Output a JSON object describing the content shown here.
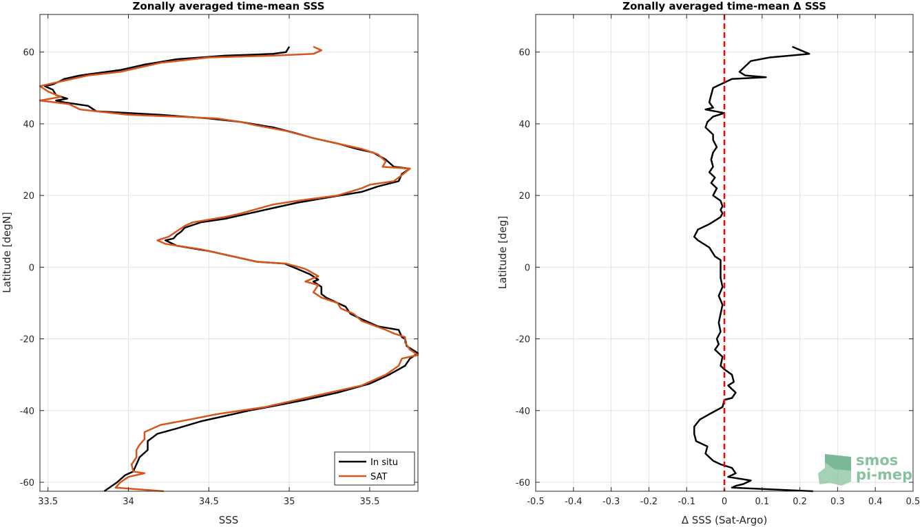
{
  "chart_data": [
    {
      "type": "line",
      "title": "Zonally averaged time-mean SSS",
      "xlabel": "SSS",
      "ylabel": "Latitude [degN]",
      "xlim": [
        33.45,
        35.8
      ],
      "ylim": [
        -62.5,
        70.5
      ],
      "xticks": [
        33.5,
        34,
        34.5,
        35,
        35.5
      ],
      "xtick_labels": [
        "33.5",
        "34",
        "34.5",
        "35",
        "35.5"
      ],
      "yticks": [
        -60,
        -40,
        -20,
        0,
        20,
        40,
        60
      ],
      "ytick_labels": [
        "-60",
        "-40",
        "-20",
        "0",
        "20",
        "40",
        "60"
      ],
      "grid": true,
      "legend": "bottom-right",
      "series": [
        {
          "name": "In situ",
          "color": "#000000",
          "points": [
            [
              35.0,
              61.5
            ],
            [
              34.98,
              60
            ],
            [
              34.9,
              59.5
            ],
            [
              34.6,
              59
            ],
            [
              34.3,
              58
            ],
            [
              34.1,
              56.5
            ],
            [
              33.95,
              55
            ],
            [
              33.7,
              53.5
            ],
            [
              33.6,
              52.5
            ],
            [
              33.58,
              52
            ],
            [
              33.53,
              51
            ],
            [
              33.48,
              50.5
            ],
            [
              33.53,
              49.5
            ],
            [
              33.55,
              48
            ],
            [
              33.62,
              47
            ],
            [
              33.55,
              46.5
            ],
            [
              33.6,
              46
            ],
            [
              33.75,
              45
            ],
            [
              33.8,
              43.5
            ],
            [
              34.0,
              43
            ],
            [
              34.2,
              42.5
            ],
            [
              34.5,
              41.5
            ],
            [
              34.7,
              40.5
            ],
            [
              34.83,
              39.5
            ],
            [
              34.9,
              39
            ],
            [
              35.03,
              37.5
            ],
            [
              35.15,
              36
            ],
            [
              35.3,
              34.5
            ],
            [
              35.42,
              33
            ],
            [
              35.52,
              32
            ],
            [
              35.6,
              30
            ],
            [
              35.65,
              28
            ],
            [
              35.75,
              27.5
            ],
            [
              35.7,
              26
            ],
            [
              35.68,
              24
            ],
            [
              35.55,
              22.5
            ],
            [
              35.45,
              21
            ],
            [
              35.25,
              19.5
            ],
            [
              35.05,
              18
            ],
            [
              34.9,
              16.5
            ],
            [
              34.75,
              15
            ],
            [
              34.6,
              13.5
            ],
            [
              34.45,
              12.5
            ],
            [
              34.35,
              11
            ],
            [
              34.33,
              10
            ],
            [
              34.3,
              9
            ],
            [
              34.28,
              8
            ],
            [
              34.23,
              7.5
            ],
            [
              34.3,
              6
            ],
            [
              34.5,
              4.5
            ],
            [
              34.6,
              3.5
            ],
            [
              34.8,
              1.5
            ],
            [
              34.97,
              1
            ],
            [
              35.05,
              -0.5
            ],
            [
              35.13,
              -2
            ],
            [
              35.18,
              -3.5
            ],
            [
              35.15,
              -4
            ],
            [
              35.2,
              -5.5
            ],
            [
              35.2,
              -7.5
            ],
            [
              35.23,
              -8.5
            ],
            [
              35.3,
              -10
            ],
            [
              35.35,
              -11
            ],
            [
              35.38,
              -13
            ],
            [
              35.45,
              -14.5
            ],
            [
              35.55,
              -16.5
            ],
            [
              35.68,
              -17.5
            ],
            [
              35.7,
              -19.5
            ],
            [
              35.72,
              -20
            ],
            [
              35.73,
              -22
            ],
            [
              35.8,
              -24
            ],
            [
              35.75,
              -25.5
            ],
            [
              35.72,
              -27.5
            ],
            [
              35.62,
              -30
            ],
            [
              35.5,
              -32.5
            ],
            [
              35.3,
              -35
            ],
            [
              35.1,
              -37
            ],
            [
              34.93,
              -38.5
            ],
            [
              34.75,
              -40
            ],
            [
              34.6,
              -41.5
            ],
            [
              34.45,
              -43
            ],
            [
              34.3,
              -45
            ],
            [
              34.18,
              -46.5
            ],
            [
              34.12,
              -48.5
            ],
            [
              34.12,
              -51
            ],
            [
              34.07,
              -53
            ],
            [
              34.05,
              -55
            ],
            [
              34.03,
              -57
            ],
            [
              33.98,
              -58
            ],
            [
              33.93,
              -60
            ],
            [
              33.85,
              -62.5
            ]
          ]
        },
        {
          "name": "SAT",
          "color": "#d9541a",
          "points": [
            [
              35.15,
              61.5
            ],
            [
              35.2,
              60.5
            ],
            [
              35.15,
              59.5
            ],
            [
              34.9,
              59
            ],
            [
              34.5,
              58.5
            ],
            [
              34.2,
              57
            ],
            [
              34.05,
              55.5
            ],
            [
              33.95,
              54.5
            ],
            [
              33.75,
              53.5
            ],
            [
              33.6,
              52
            ],
            [
              33.45,
              50.5
            ],
            [
              33.5,
              49
            ],
            [
              33.58,
              47.5
            ],
            [
              33.45,
              46.5
            ],
            [
              33.63,
              45.5
            ],
            [
              33.7,
              44
            ],
            [
              33.8,
              43.5
            ],
            [
              34.0,
              42.5
            ],
            [
              34.3,
              42
            ],
            [
              34.55,
              41.5
            ],
            [
              34.7,
              40.5
            ],
            [
              34.8,
              39.5
            ],
            [
              34.98,
              38
            ],
            [
              35.15,
              36
            ],
            [
              35.3,
              34.5
            ],
            [
              35.45,
              33
            ],
            [
              35.55,
              31.5
            ],
            [
              35.6,
              29.5
            ],
            [
              35.58,
              28
            ],
            [
              35.75,
              27.5
            ],
            [
              35.68,
              25
            ],
            [
              35.65,
              24
            ],
            [
              35.5,
              23
            ],
            [
              35.45,
              22
            ],
            [
              35.3,
              20
            ],
            [
              35.05,
              18.5
            ],
            [
              34.9,
              17.5
            ],
            [
              34.7,
              15
            ],
            [
              34.6,
              14
            ],
            [
              34.4,
              12.5
            ],
            [
              34.35,
              11.5
            ],
            [
              34.3,
              10
            ],
            [
              34.25,
              8.5
            ],
            [
              34.18,
              7.5
            ],
            [
              34.23,
              6.5
            ],
            [
              34.45,
              5
            ],
            [
              34.6,
              3.5
            ],
            [
              34.8,
              1.5
            ],
            [
              34.98,
              1
            ],
            [
              35.1,
              -0.5
            ],
            [
              35.18,
              -2.5
            ],
            [
              35.1,
              -4
            ],
            [
              35.18,
              -5
            ],
            [
              35.15,
              -7
            ],
            [
              35.2,
              -8.5
            ],
            [
              35.3,
              -10
            ],
            [
              35.32,
              -11.5
            ],
            [
              35.4,
              -13
            ],
            [
              35.45,
              -15
            ],
            [
              35.6,
              -17.5
            ],
            [
              35.65,
              -18.5
            ],
            [
              35.72,
              -19.5
            ],
            [
              35.72,
              -21
            ],
            [
              35.75,
              -23
            ],
            [
              35.8,
              -24.5
            ],
            [
              35.7,
              -25.5
            ],
            [
              35.68,
              -27.5
            ],
            [
              35.6,
              -30
            ],
            [
              35.45,
              -33
            ],
            [
              35.25,
              -35
            ],
            [
              35.05,
              -37
            ],
            [
              34.85,
              -39
            ],
            [
              34.55,
              -41
            ],
            [
              34.38,
              -42.5
            ],
            [
              34.2,
              -44
            ],
            [
              34.1,
              -46
            ],
            [
              34.1,
              -48
            ],
            [
              34.07,
              -49.5
            ],
            [
              34.05,
              -51
            ],
            [
              34.05,
              -53
            ],
            [
              34.02,
              -55
            ],
            [
              34.03,
              -57
            ],
            [
              34.1,
              -57.5
            ],
            [
              34.0,
              -58.5
            ],
            [
              33.95,
              -60
            ],
            [
              33.92,
              -61.5
            ],
            [
              34.22,
              -62.5
            ]
          ]
        }
      ]
    },
    {
      "type": "line",
      "title": "Zonally averaged time-mean Δ SSS",
      "xlabel": "Δ SSS (Sat-Argo)",
      "ylabel": "Latitude [deg]",
      "xlim": [
        -0.5,
        0.5
      ],
      "ylim": [
        -62.5,
        70.5
      ],
      "xticks": [
        -0.5,
        -0.4,
        -0.3,
        -0.2,
        -0.1,
        0,
        0.1,
        0.2,
        0.3,
        0.4,
        0.5
      ],
      "xtick_labels": [
        "-0.5",
        "-0.4",
        "-0.3",
        "-0.2",
        "-0.1",
        "0",
        "0.1",
        "0.2",
        "0.3",
        "0.4",
        "0.5"
      ],
      "yticks": [
        -60,
        -40,
        -20,
        0,
        20,
        40,
        60
      ],
      "ytick_labels": [
        "-60",
        "-40",
        "-20",
        "0",
        "20",
        "40",
        "60"
      ],
      "grid": true,
      "reference_line": {
        "x": 0,
        "color": "#ff0000",
        "style": "dashed"
      },
      "series": [
        {
          "color": "#000000",
          "points": [
            [
              0.18,
              61.5
            ],
            [
              0.225,
              59.5
            ],
            [
              0.12,
              58.5
            ],
            [
              0.07,
              57.5
            ],
            [
              0.06,
              56.5
            ],
            [
              0.04,
              54.5
            ],
            [
              0.055,
              53.5
            ],
            [
              0.11,
              53
            ],
            [
              0.02,
              52.5
            ],
            [
              0.0,
              51.5
            ],
            [
              -0.03,
              50
            ],
            [
              -0.035,
              48
            ],
            [
              -0.04,
              46
            ],
            [
              -0.03,
              44.5
            ],
            [
              -0.05,
              44
            ],
            [
              0.0,
              43
            ],
            [
              -0.03,
              42
            ],
            [
              -0.045,
              40.5
            ],
            [
              -0.05,
              39
            ],
            [
              -0.03,
              37
            ],
            [
              -0.03,
              35.5
            ],
            [
              -0.02,
              33.5
            ],
            [
              -0.03,
              32
            ],
            [
              -0.035,
              30
            ],
            [
              -0.03,
              28
            ],
            [
              -0.04,
              26.5
            ],
            [
              -0.025,
              25
            ],
            [
              -0.035,
              23.5
            ],
            [
              -0.02,
              22
            ],
            [
              -0.03,
              20
            ],
            [
              -0.01,
              18.5
            ],
            [
              -0.005,
              17
            ],
            [
              -0.01,
              16
            ],
            [
              -0.005,
              15
            ],
            [
              -0.01,
              14
            ],
            [
              -0.04,
              12
            ],
            [
              -0.07,
              10.5
            ],
            [
              -0.08,
              8.5
            ],
            [
              -0.07,
              7.5
            ],
            [
              -0.04,
              5.5
            ],
            [
              -0.025,
              3
            ],
            [
              -0.01,
              2
            ],
            [
              -0.01,
              0
            ],
            [
              -0.01,
              -3
            ],
            [
              -0.005,
              -5.5
            ],
            [
              -0.015,
              -8
            ],
            [
              -0.005,
              -10.5
            ],
            [
              -0.01,
              -13
            ],
            [
              -0.015,
              -15.5
            ],
            [
              -0.01,
              -18
            ],
            [
              -0.02,
              -20
            ],
            [
              -0.015,
              -21.5
            ],
            [
              -0.025,
              -23
            ],
            [
              -0.005,
              -25
            ],
            [
              -0.01,
              -27.5
            ],
            [
              0.0,
              -28.5
            ],
            [
              0.02,
              -30
            ],
            [
              0.025,
              -32
            ],
            [
              0.01,
              -33
            ],
            [
              0.03,
              -35
            ],
            [
              0.02,
              -36.5
            ],
            [
              0.0,
              -37
            ],
            [
              -0.005,
              -39
            ],
            [
              -0.04,
              -41
            ],
            [
              -0.065,
              -42.5
            ],
            [
              -0.08,
              -44.5
            ],
            [
              -0.08,
              -46.5
            ],
            [
              -0.075,
              -48.5
            ],
            [
              -0.045,
              -50
            ],
            [
              -0.05,
              -52
            ],
            [
              -0.03,
              -54
            ],
            [
              -0.01,
              -55
            ],
            [
              0.02,
              -56
            ],
            [
              0.03,
              -57.5
            ],
            [
              0.01,
              -58.5
            ],
            [
              0.07,
              -59.5
            ],
            [
              0.05,
              -60.5
            ],
            [
              0.03,
              -61
            ],
            [
              0.02,
              -61.5
            ],
            [
              0.235,
              -62.5
            ]
          ]
        }
      ]
    }
  ],
  "logo": {
    "line1": "smos",
    "line2": "pi-mep",
    "color": "#87c29f"
  }
}
